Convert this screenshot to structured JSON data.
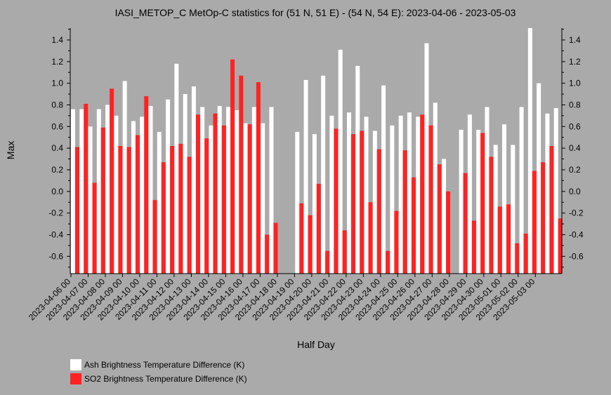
{
  "chart_data": {
    "type": "bar",
    "title": "IASI_METOP_C MetOp-C statistics for (51 N, 51 E) - (54 N, 54 E): 2023-04-06 - 2023-05-03",
    "xlabel": "Half Day",
    "ylabel": "Max",
    "ylim": [
      -0.76,
      1.51
    ],
    "yticks": [
      -0.6,
      -0.4,
      -0.2,
      0.0,
      0.2,
      0.4,
      0.6,
      0.8,
      1.0,
      1.2,
      1.4
    ],
    "ytick_labels": [
      "-0.6",
      "-0.4",
      "-0.2",
      "0.0",
      "0.2",
      "0.4",
      "0.6",
      "0.8",
      "1.0",
      "1.2",
      "1.4"
    ],
    "xtick_labels": [
      "2023-04-06 00",
      "2023-04-07 00",
      "2023-04-08 00",
      "2023-04-09 00",
      "2023-04-10 00",
      "2023-04-11 00",
      "2023-04-12 00",
      "2023-04-13 00",
      "2023-04-14 00",
      "2023-04-15 00",
      "2023-04-16 00",
      "2023-04-17 00",
      "2023-04-18 00",
      "2023-04-19 00",
      "2023-04-20 00",
      "2023-04-21 00",
      "2023-04-22 00",
      "2023-04-23 00",
      "2023-04-24 00",
      "2023-04-25 00",
      "2023-04-26 00",
      "2023-04-27 00",
      "2023-04-28 00",
      "2023-04-29 00",
      "2023-04-30 00",
      "2023-05-01 00",
      "2023-05-02 00",
      "2023-05-03 00"
    ],
    "grid": false,
    "legend_position": "bottom-left",
    "series": [
      {
        "name": "Ash Brightness Temperature Difference (K)",
        "color": "#ffffff",
        "values": [
          0.76,
          0.76,
          0.6,
          0.76,
          0.8,
          0.7,
          1.02,
          0.65,
          0.69,
          0.79,
          0.55,
          0.85,
          1.18,
          0.9,
          0.97,
          0.78,
          0.61,
          0.79,
          0.78,
          0.75,
          0.63,
          0.78,
          0.63,
          0.78,
          null,
          null,
          0.55,
          1.03,
          0.53,
          1.07,
          0.7,
          1.31,
          0.73,
          1.16,
          0.69,
          0.56,
          0.98,
          0.61,
          0.7,
          0.73,
          0.69,
          1.37,
          0.82,
          0.3,
          null,
          0.57,
          0.71,
          0.57,
          0.78,
          0.43,
          0.62,
          0.43,
          0.78,
          1.51,
          1.0,
          0.72,
          0.77
        ]
      },
      {
        "name": "SO2 Brightness Temperature Difference (K)",
        "color": "#ff2222",
        "values": [
          0.41,
          0.81,
          0.08,
          0.59,
          0.95,
          0.42,
          0.41,
          0.52,
          0.88,
          -0.08,
          0.27,
          0.42,
          0.44,
          0.32,
          0.71,
          0.49,
          0.72,
          0.61,
          1.22,
          1.07,
          0.62,
          1.01,
          -0.4,
          -0.29,
          null,
          null,
          -0.11,
          -0.22,
          0.07,
          -0.55,
          0.58,
          -0.36,
          0.53,
          0.56,
          -0.1,
          0.39,
          -0.55,
          -0.18,
          0.38,
          0.13,
          0.71,
          0.61,
          0.25,
          0.0,
          null,
          0.17,
          -0.27,
          0.54,
          0.32,
          -0.14,
          -0.12,
          -0.48,
          -0.39,
          0.19,
          0.27,
          0.42,
          -0.25
        ]
      }
    ]
  }
}
